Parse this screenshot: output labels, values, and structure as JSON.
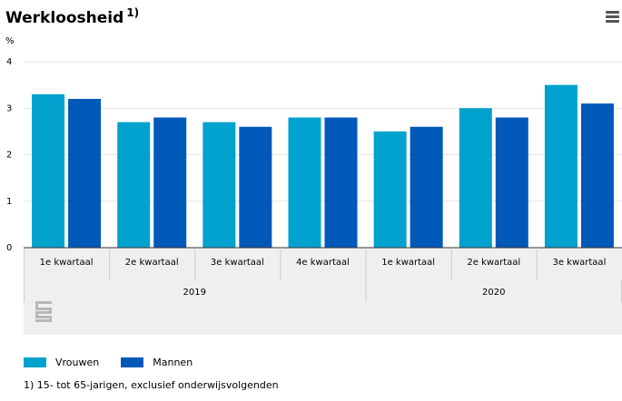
{
  "header": {
    "title": "Werkloosheid",
    "title_note": "1)",
    "menu_icon": "hamburger-menu-icon"
  },
  "chart_data": {
    "type": "bar",
    "title": "Werkloosheid 1)",
    "ylabel": "%",
    "ylim": [
      0,
      4
    ],
    "yticks": [
      0,
      1,
      2,
      3,
      4
    ],
    "grid": true,
    "categories": [
      "1e kwartaal",
      "2e kwartaal",
      "3e kwartaal",
      "4e kwartaal",
      "1e kwartaal",
      "2e kwartaal",
      "3e kwartaal"
    ],
    "groups": [
      {
        "label": "2019",
        "span": 4
      },
      {
        "label": "2020",
        "span": 3
      }
    ],
    "series": [
      {
        "name": "Vrouwen",
        "color": "#00a1cd",
        "values": [
          3.3,
          2.7,
          2.7,
          2.8,
          2.5,
          3.0,
          3.5
        ]
      },
      {
        "name": "Mannen",
        "color": "#0058b8",
        "values": [
          3.2,
          2.8,
          2.6,
          2.8,
          2.6,
          2.8,
          3.1
        ]
      }
    ],
    "legend_position": "bottom-left",
    "logo": "cbs-logo-icon"
  },
  "legend": {
    "items": [
      {
        "label": "Vrouwen",
        "color": "#00a1cd"
      },
      {
        "label": "Mannen",
        "color": "#0058b8"
      }
    ]
  },
  "footnote": "1) 15- tot 65-jarigen, exclusief onderwijsvolgenden"
}
